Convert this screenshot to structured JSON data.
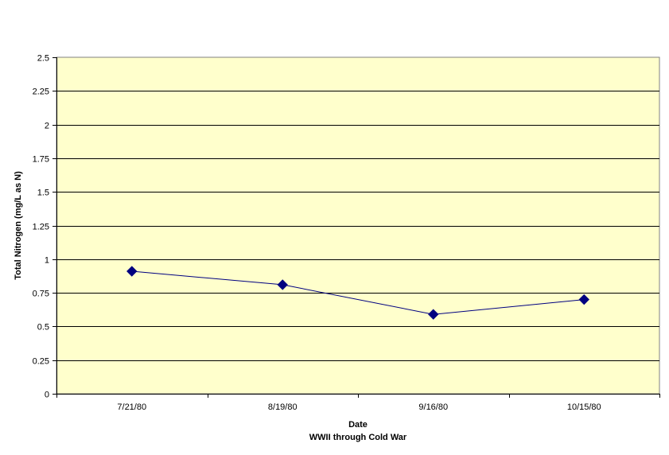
{
  "chart_data": {
    "type": "line",
    "title": "",
    "xlabel": "Date",
    "xlabel_sub": "WWII through Cold War",
    "ylabel": "Total Nitrogen (mg/L as N)",
    "categories": [
      "7/21/80",
      "8/19/80",
      "9/16/80",
      "10/15/80"
    ],
    "series": [
      {
        "values": [
          0.91,
          0.81,
          0.59,
          0.7
        ]
      }
    ],
    "ylim": [
      0,
      2.5
    ],
    "yticks": [
      "0",
      "0.25",
      "0.5",
      "0.75",
      "1",
      "1.25",
      "1.5",
      "1.75",
      "2",
      "2.25",
      "2.5"
    ],
    "grid": true,
    "legend": "none",
    "colors": {
      "plot_background": "#FFFFCC",
      "gridline": "#000000",
      "series_line": "#000080",
      "marker": "#000080"
    },
    "marker": "diamond-icon"
  }
}
